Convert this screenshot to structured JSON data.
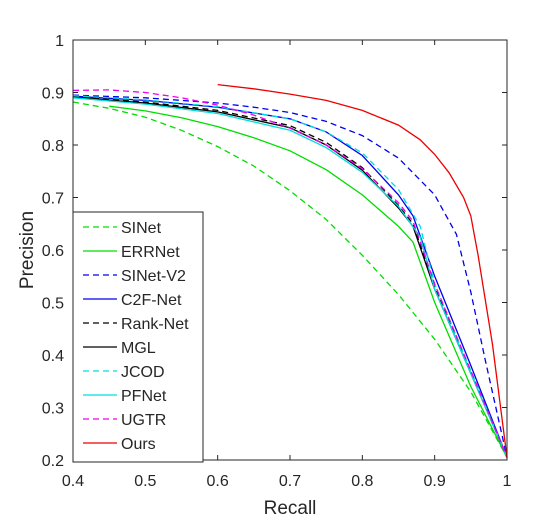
{
  "chart_data": {
    "type": "line",
    "title": "",
    "xlabel": "Recall",
    "ylabel": "Precision",
    "xlim": [
      0.4,
      1.0
    ],
    "ylim": [
      0.2,
      1.0
    ],
    "xticks": [
      0.4,
      0.5,
      0.6,
      0.7,
      0.8,
      0.9,
      1.0
    ],
    "yticks": [
      0.2,
      0.3,
      0.4,
      0.5,
      0.6,
      0.7,
      0.8,
      0.9,
      1.0
    ],
    "xtick_labels": [
      "0.4",
      "0.5",
      "0.6",
      "0.7",
      "0.8",
      "0.9",
      "1"
    ],
    "ytick_labels": [
      "0.2",
      "0.3",
      "0.4",
      "0.5",
      "0.6",
      "0.7",
      "0.8",
      "0.9",
      "1"
    ],
    "grid": false,
    "legend_position": "bottom-left",
    "series": [
      {
        "name": "SINet",
        "color": "#00dd00",
        "dash": "dashed",
        "x": [
          0.4,
          0.45,
          0.5,
          0.55,
          0.6,
          0.65,
          0.7,
          0.75,
          0.8,
          0.85,
          0.9,
          0.95,
          1.0
        ],
        "y": [
          0.882,
          0.87,
          0.853,
          0.828,
          0.797,
          0.76,
          0.713,
          0.658,
          0.59,
          0.515,
          0.43,
          0.33,
          0.205
        ]
      },
      {
        "name": "ERRNet",
        "color": "#00dd00",
        "dash": "solid",
        "x": [
          0.45,
          0.5,
          0.55,
          0.6,
          0.65,
          0.7,
          0.75,
          0.8,
          0.85,
          0.87,
          0.9,
          0.95,
          1.0
        ],
        "y": [
          0.874,
          0.865,
          0.852,
          0.835,
          0.814,
          0.789,
          0.753,
          0.705,
          0.645,
          0.615,
          0.5,
          0.34,
          0.205
        ]
      },
      {
        "name": "SINet-V2",
        "color": "#0000ee",
        "dash": "dashed",
        "x": [
          0.4,
          0.5,
          0.6,
          0.65,
          0.7,
          0.75,
          0.8,
          0.85,
          0.9,
          0.93,
          0.95,
          0.97,
          1.0
        ],
        "y": [
          0.895,
          0.89,
          0.88,
          0.872,
          0.862,
          0.845,
          0.818,
          0.775,
          0.705,
          0.63,
          0.52,
          0.39,
          0.205
        ]
      },
      {
        "name": "C2F-Net",
        "color": "#0000ee",
        "dash": "solid",
        "x": [
          0.4,
          0.5,
          0.6,
          0.7,
          0.75,
          0.8,
          0.85,
          0.87,
          0.9,
          0.95,
          1.0
        ],
        "y": [
          0.893,
          0.885,
          0.872,
          0.85,
          0.825,
          0.78,
          0.705,
          0.665,
          0.55,
          0.38,
          0.205
        ]
      },
      {
        "name": "Rank-Net",
        "color": "#000000",
        "dash": "dashed",
        "x": [
          0.4,
          0.5,
          0.6,
          0.7,
          0.75,
          0.8,
          0.85,
          0.87,
          0.9,
          0.95,
          1.0
        ],
        "y": [
          0.892,
          0.882,
          0.866,
          0.837,
          0.805,
          0.757,
          0.685,
          0.65,
          0.53,
          0.37,
          0.205
        ]
      },
      {
        "name": "MGL",
        "color": "#000000",
        "dash": "solid",
        "x": [
          0.4,
          0.5,
          0.6,
          0.7,
          0.75,
          0.8,
          0.85,
          0.87,
          0.9,
          0.95,
          1.0
        ],
        "y": [
          0.891,
          0.88,
          0.863,
          0.833,
          0.8,
          0.752,
          0.68,
          0.645,
          0.525,
          0.365,
          0.205
        ]
      },
      {
        "name": "JCOD",
        "color": "#00dddd",
        "dash": "dashed",
        "x": [
          0.4,
          0.5,
          0.6,
          0.7,
          0.75,
          0.8,
          0.85,
          0.88,
          0.9,
          0.95,
          1.0
        ],
        "y": [
          0.894,
          0.886,
          0.873,
          0.85,
          0.825,
          0.785,
          0.715,
          0.645,
          0.535,
          0.37,
          0.205
        ]
      },
      {
        "name": "PFNet",
        "color": "#00dddd",
        "dash": "solid",
        "x": [
          0.4,
          0.5,
          0.6,
          0.7,
          0.75,
          0.8,
          0.85,
          0.88,
          0.9,
          0.95,
          1.0
        ],
        "y": [
          0.89,
          0.878,
          0.86,
          0.828,
          0.795,
          0.748,
          0.683,
          0.625,
          0.525,
          0.365,
          0.205
        ]
      },
      {
        "name": "UGTR",
        "color": "#ee00ee",
        "dash": "dashed",
        "x": [
          0.4,
          0.45,
          0.5,
          0.55,
          0.6,
          0.65,
          0.7,
          0.75,
          0.8,
          0.85,
          0.87,
          0.9,
          0.95,
          1.0
        ],
        "y": [
          0.904,
          0.905,
          0.9,
          0.89,
          0.876,
          0.857,
          0.832,
          0.8,
          0.755,
          0.69,
          0.655,
          0.535,
          0.37,
          0.205
        ]
      },
      {
        "name": "Ours",
        "color": "#ee0000",
        "dash": "solid",
        "x": [
          0.6,
          0.65,
          0.7,
          0.75,
          0.8,
          0.85,
          0.88,
          0.9,
          0.92,
          0.94,
          0.95,
          0.96,
          0.98,
          1.0
        ],
        "y": [
          0.915,
          0.907,
          0.897,
          0.885,
          0.866,
          0.838,
          0.81,
          0.782,
          0.747,
          0.7,
          0.665,
          0.59,
          0.42,
          0.205
        ]
      }
    ]
  }
}
